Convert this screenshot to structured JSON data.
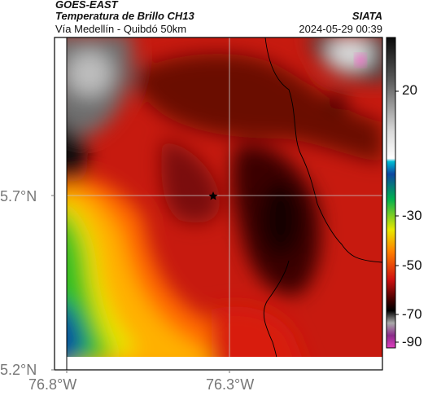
{
  "header": {
    "satellite": "GOES-EAST",
    "product": "Temperatura de Brillo CH13",
    "region": "Vía Medellín - Quibdó 50km",
    "source": "SIATA",
    "datetime": "2024-05-29 00:39"
  },
  "axes": {
    "lat_ticks": [
      "5.7°N",
      "5.2°N"
    ],
    "lon_ticks": [
      "76.8°W",
      "76.3°W"
    ]
  },
  "colorbar": {
    "ticks": [
      "20",
      "-30",
      "-50",
      "-70",
      "-90"
    ]
  },
  "colors": {
    "map_border": "#000000",
    "gridline": "#c8c8c8"
  }
}
